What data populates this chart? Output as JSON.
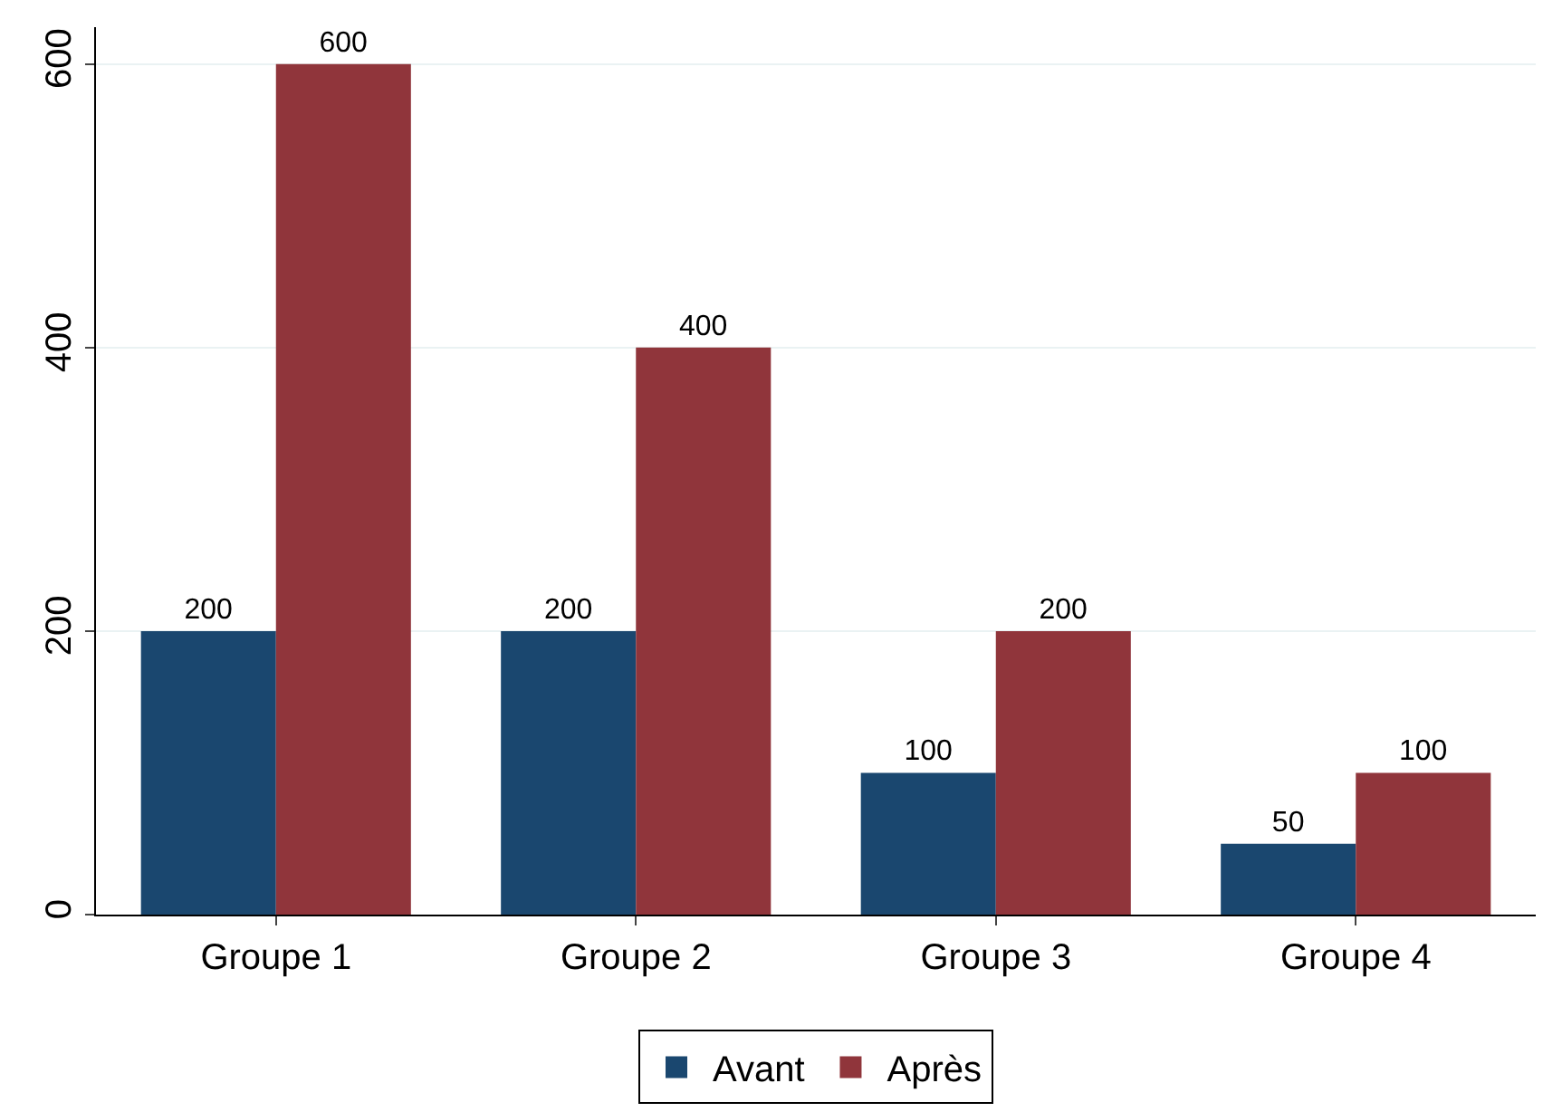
{
  "chart_data": {
    "type": "bar",
    "categories": [
      "Groupe 1",
      "Groupe 2",
      "Groupe 3",
      "Groupe 4"
    ],
    "series": [
      {
        "name": "Avant",
        "color": "#1a476f",
        "values": [
          200,
          200,
          100,
          50
        ]
      },
      {
        "name": "Après",
        "color": "#90353b",
        "values": [
          600,
          400,
          200,
          100
        ]
      }
    ],
    "ylim": [
      0,
      626
    ],
    "yticks": [
      0,
      200,
      400,
      600
    ],
    "grid": "y",
    "legend": "bottom",
    "data_labels": true
  }
}
